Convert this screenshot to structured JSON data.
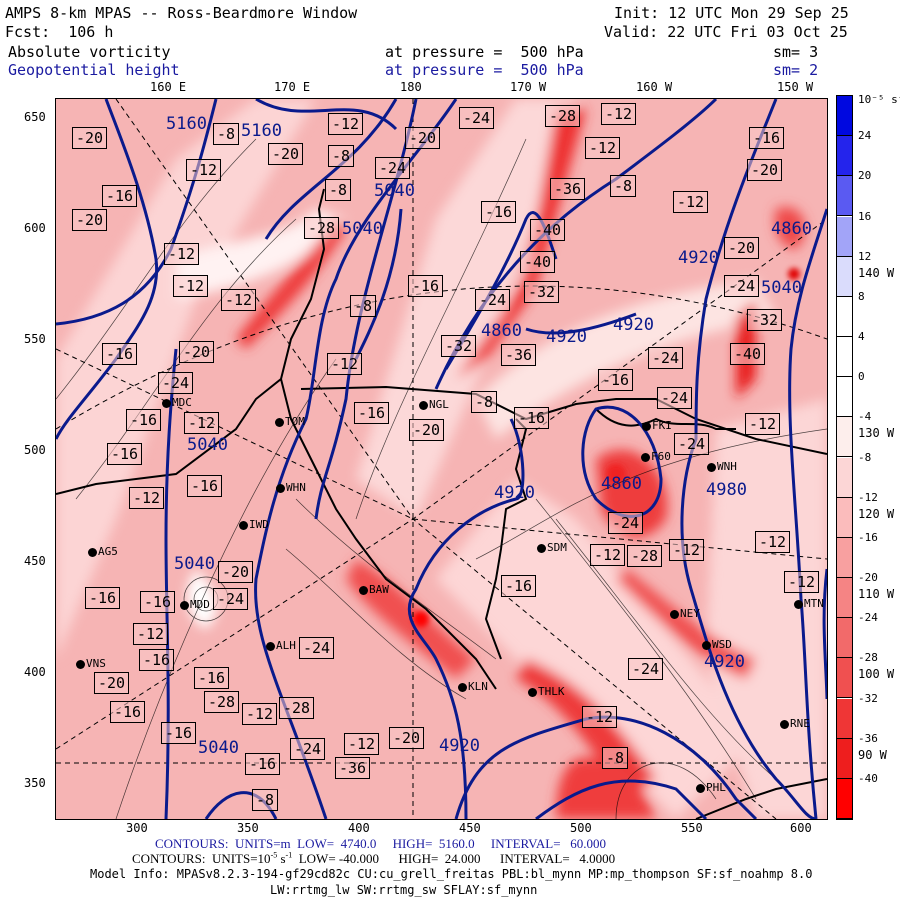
{
  "header": {
    "title": "AMPS 8-km MPAS -- Ross-Beardmore Window",
    "init": "Init: 12 UTC Mon 29 Sep 25",
    "fcst": "Fcst:  106 h",
    "valid": "Valid: 22 UTC Fri 03 Oct 25",
    "field1": {
      "name": "Absolute vorticity",
      "level": "at pressure =  500 hPa",
      "sm": "sm= 3"
    },
    "field2": {
      "name": "Geopotential height",
      "level": "at pressure =  500 hPa",
      "sm": "sm= 2"
    }
  },
  "top_lon_labels": [
    "160 E",
    "170 E",
    "180",
    "170 W",
    "160 W",
    "150 W"
  ],
  "right_lon_labels": [
    "140 W",
    "130 W",
    "120 W",
    "110 W",
    "100 W",
    "90 W"
  ],
  "y_axis": [
    "650",
    "600",
    "550",
    "500",
    "450",
    "400",
    "350"
  ],
  "x_axis": [
    "300",
    "350",
    "400",
    "450",
    "500",
    "550",
    "600"
  ],
  "colorbar": {
    "units": "10⁻⁵ s⁻¹",
    "labels": [
      "24",
      "20",
      "16",
      "12",
      "8",
      "4",
      "0",
      "-4",
      "-8",
      "-12",
      "-16",
      "-20",
      "-24",
      "-28",
      "-32",
      "-36",
      "-40"
    ],
    "colors": [
      "#0008e0",
      "#2424ec",
      "#5a5af2",
      "#a2a4f8",
      "#dadcfc",
      "#ffffff",
      "#ffffff",
      "#ffffff",
      "#fdeeec",
      "#fcd6d6",
      "#fbbcbc",
      "#f8a0a0",
      "#f58484",
      "#f26a6a",
      "#f05050",
      "#ef3636",
      "#ee1e1e",
      "#ff0000"
    ]
  },
  "height_labels": [
    "5160",
    "5160",
    "5040",
    "5040",
    "4920",
    "4920",
    "4920",
    "4860",
    "4860",
    "4920",
    "4860",
    "4980",
    "5040",
    "5040",
    "5040",
    "4920",
    "4920",
    "5040"
  ],
  "vort_labels": [
    "-20",
    "-8",
    "-20",
    "-12",
    "-8",
    "-20",
    "-24",
    "-28",
    "-12",
    "-12",
    "-8",
    "-16",
    "-20",
    "-24",
    "-8",
    "-28",
    "-36",
    "-16",
    "-12",
    "-12",
    "-16",
    "-20",
    "-40",
    "-12",
    "-12",
    "-16",
    "-20",
    "-40",
    "-32",
    "-24",
    "-12",
    "-24",
    "-32",
    "-8",
    "-36",
    "-32",
    "-16",
    "-20",
    "-40",
    "-12",
    "-24",
    "-16",
    "-24",
    "-16",
    "-16",
    "-8",
    "-20",
    "-24",
    "-16",
    "-12",
    "-16",
    "-12",
    "-16",
    "-12",
    "-20",
    "-24",
    "-24",
    "-24",
    "-28",
    "-12",
    "-12",
    "-12",
    "-16",
    "-12",
    "-16",
    "-16",
    "-12",
    "-16",
    "-20",
    "-16",
    "-28",
    "-16",
    "-24",
    "-24",
    "-24",
    "-36",
    "-12",
    "-8",
    "-12",
    "-20",
    "-28",
    "-8",
    "-16",
    "-12",
    "-16"
  ],
  "stations": [
    "MDC",
    "TOM",
    "WHN",
    "IWD",
    "AG5",
    "MDD",
    "ALH",
    "VNS",
    "BAW",
    "NGL",
    "SDM",
    "KLN",
    "THLK",
    "NEY",
    "WSD",
    "MTN",
    "RNE",
    "FKI",
    "F60",
    "WNH",
    "PHL"
  ],
  "footer": {
    "height_contours": "CONTOURS:  UNITS=m  LOW=  4740.0     HIGH=  5160.0     INTERVAL=   60.000",
    "vort_contours_pre": "CONTOURS:  UNITS=10",
    "vort_contours_exp": "-5",
    "vort_contours_post": " s",
    "vort_contours_exp2": "-1",
    "vort_contours_rest": "  LOW= -40.000      HIGH=  24.000      INTERVAL=   4.0000",
    "model_info": "Model Info: MPASv8.2.3-194-gf29cd82c CU:cu_grell_freitas PBL:bl_mynn MP:mp_thompson SF:sf_noahmp 8.0",
    "model_info2": "LW:rrtmg_lw SW:rrtmg_sw SFLAY:sf_mynn"
  },
  "colors": {
    "height_contour": "#0a1a8c",
    "title_blue": "#1a1aa0"
  }
}
